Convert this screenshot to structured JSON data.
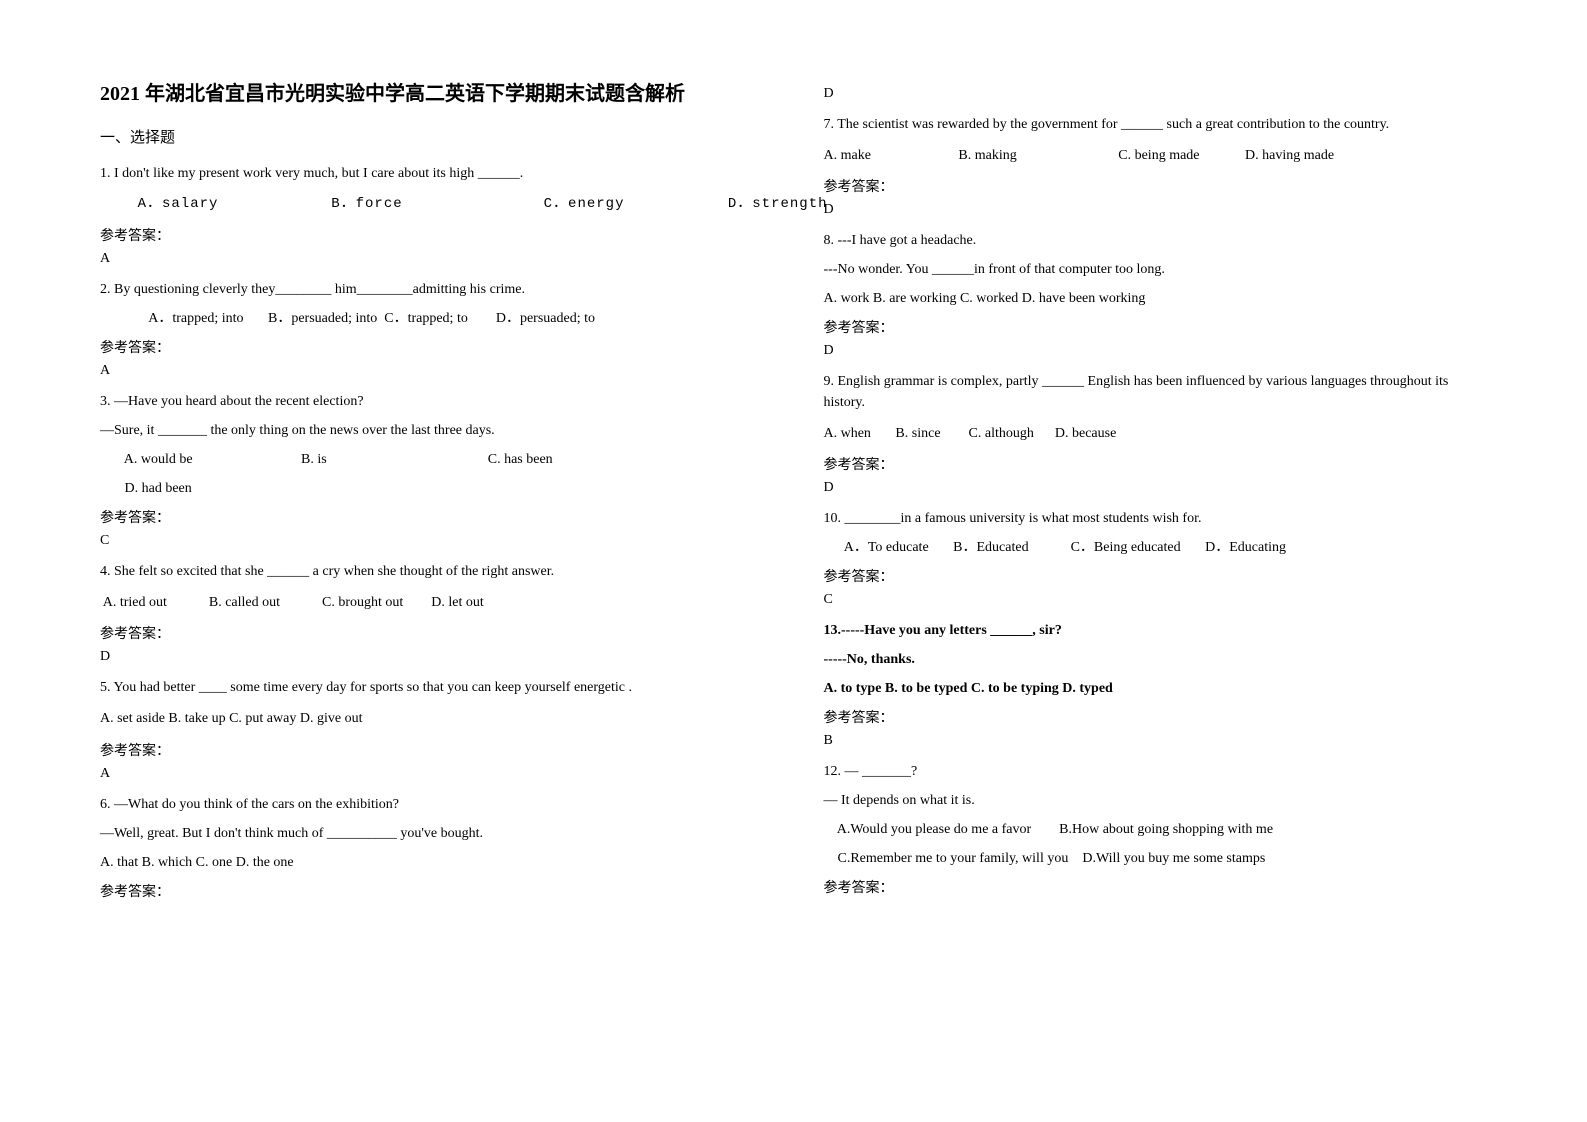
{
  "title": "2021 年湖北省宜昌市光明实验中学高二英语下学期期末试题含解析",
  "section_heading": "一、选择题",
  "answer_label": "参考答案：",
  "q1": {
    "stem": "1. I don't like my present work very much, but I care about its high ______.",
    "opts": "    A．salary            B．force               C．energy           D．strength",
    "ans": "A"
  },
  "q2": {
    "stem": "2. By questioning cleverly they________ him________admitting his crime.",
    "opts": "      A．trapped; into       B．persuaded; into  C．trapped; to        D．persuaded; to",
    "ans": "A"
  },
  "q3": {
    "l1": "3. —Have you heard about the recent election?",
    "l2": "     —Sure, it _______ the only thing on the news over the last three days.",
    "l3": "       A. would be                               B. is                                              C. has been",
    "l4": "       D. had been",
    "ans": "C"
  },
  "q4": {
    "stem": "4. She felt so excited that she ______ a cry when she thought of the right answer.",
    "opts": " A. tried out            B. called out            C. brought out        D. let out",
    "ans": "D"
  },
  "q5": {
    "stem": "5. You had better ____ some time every day for sports so that you can keep yourself energetic .",
    "opts": "A. set aside    B. take up   C. put away   D. give out",
    "ans": "A"
  },
  "q6": {
    "l1": "6. —What do you think of the cars on the exhibition?",
    "l2": "     —Well, great. But I don't think much of __________ you've bought.",
    "l3": "  A. that     B. which   C. one    D. the one",
    "ans": "D"
  },
  "q7": {
    "stem": "7. The scientist was rewarded by the government for ______ such a great contribution to the country.",
    "opts": "A. make                         B. making                             C. being made             D. having made",
    "ans": "D"
  },
  "q8": {
    "l1": "8. ---I have got a headache.",
    "l2": "---No wonder. You ______in front of that computer too long.",
    "l3": "A. work B. are working C. worked  D. have been working",
    "ans": "D"
  },
  "q9": {
    "stem": "9. English grammar is complex, partly ______ English has been influenced by various languages throughout its history.",
    "opts": "A. when       B. since        C. although      D. because",
    "ans": "D"
  },
  "q10": {
    "stem": "10. ________in a famous university is what most students wish for.",
    "opts": "      A．To educate       B．Educated            C．Being educated       D．Educating",
    "ans": "C"
  },
  "q11": {
    "l1": "13.-----Have you any letters ______, sir?",
    "l2": "  -----No, thanks.",
    "l3": "  A. to type      B. to be typed     C. to be typing      D. typed",
    "ans": "B"
  },
  "q12": {
    "l1": "12. — _______?",
    "l2": "    — It depends on what it is.",
    "l3": "    A.Would you please do me a favor        B.How about going shopping with me",
    "l4": "    C.Remember me to your family, will you    D.Will you buy me some stamps"
  }
}
